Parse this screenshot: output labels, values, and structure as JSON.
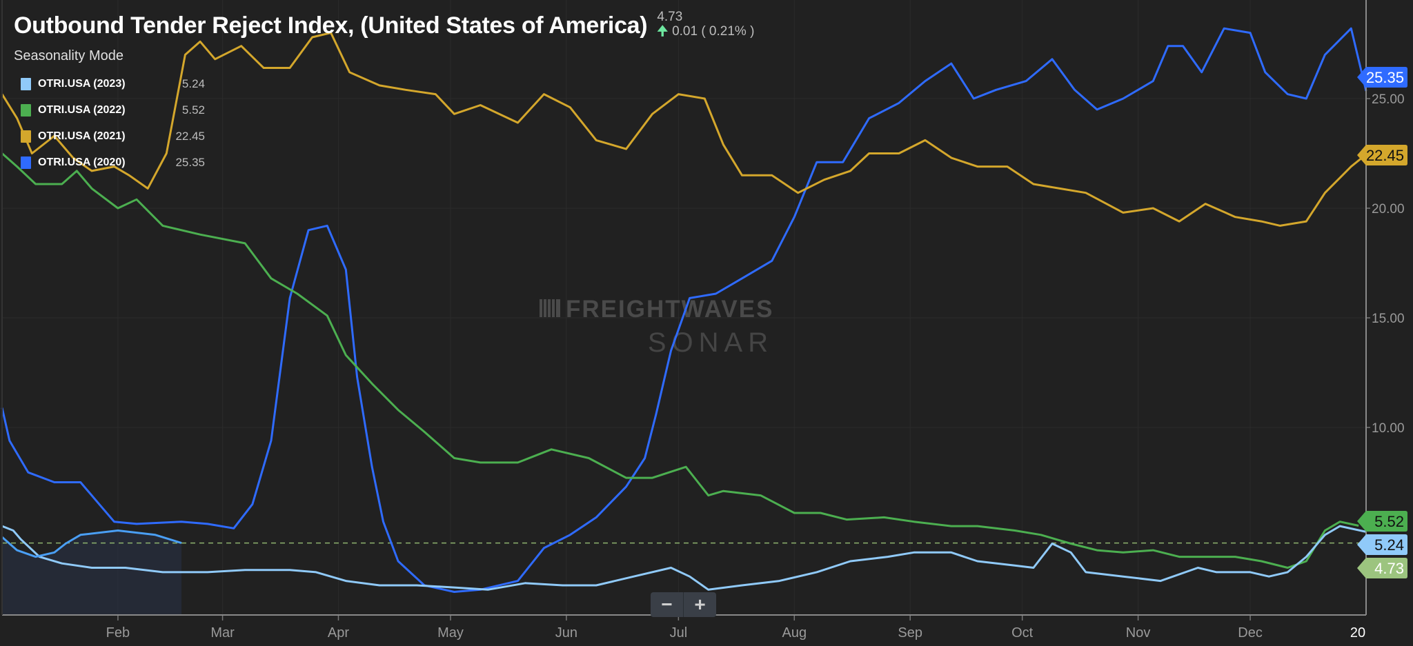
{
  "header": {
    "title": "Outbound Tender Reject Index, (United States of America)",
    "last_value": "4.73",
    "change": "0.01 ( 0.21% )",
    "change_direction": "up",
    "mode": "Seasonality Mode"
  },
  "legend": [
    {
      "name": "OTRI.USA (2023)",
      "value": "5.24",
      "color": "#90caf9"
    },
    {
      "name": "OTRI.USA (2022)",
      "value": "5.52",
      "color": "#4caf50"
    },
    {
      "name": "OTRI.USA (2021)",
      "value": "22.45",
      "color": "#d4a72c"
    },
    {
      "name": "OTRI.USA (2020)",
      "value": "25.35",
      "color": "#2f6bff"
    }
  ],
  "watermark": {
    "line1": "FREIGHTWAVES",
    "line2": "SONAR"
  },
  "zoom_controls": {
    "minus": "−",
    "plus": "+"
  },
  "chart_data": {
    "type": "line",
    "x_unit": "day of year",
    "xlim": [
      0,
      365
    ],
    "ylim": [
      1.45,
      29.5
    ],
    "grid": true,
    "y_ticks": [
      "10.00",
      "15.00",
      "20.00",
      "25.00"
    ],
    "y_tick_values": [
      10,
      15,
      20,
      25
    ],
    "x_ticks": [
      {
        "label": "Feb",
        "day": 31
      },
      {
        "label": "Mar",
        "day": 59
      },
      {
        "label": "Apr",
        "day": 90
      },
      {
        "label": "May",
        "day": 120
      },
      {
        "label": "Jun",
        "day": 151
      },
      {
        "label": "Jul",
        "day": 181
      },
      {
        "label": "Aug",
        "day": 212
      },
      {
        "label": "Sep",
        "day": 243
      },
      {
        "label": "Oct",
        "day": 273
      },
      {
        "label": "Nov",
        "day": 304
      },
      {
        "label": "Dec",
        "day": 334
      }
    ],
    "x_end_label": "20",
    "reference_line": {
      "value": 4.73,
      "color": "#8fb56f"
    },
    "series": [
      {
        "name": "OTRI.USA (2020)",
        "color": "#2f6bff",
        "end_label": "25.35",
        "points": [
          [
            0,
            10.9
          ],
          [
            2,
            9.4
          ],
          [
            7,
            7.95
          ],
          [
            14,
            7.5
          ],
          [
            21,
            7.5
          ],
          [
            26,
            6.5
          ],
          [
            30,
            5.7
          ],
          [
            36,
            5.6
          ],
          [
            48,
            5.7
          ],
          [
            55,
            5.6
          ],
          [
            62,
            5.4
          ],
          [
            67,
            6.5
          ],
          [
            72,
            9.4
          ],
          [
            77,
            15.9
          ],
          [
            82,
            19.0
          ],
          [
            87,
            19.2
          ],
          [
            92,
            17.2
          ],
          [
            95,
            12.3
          ],
          [
            99,
            8.2
          ],
          [
            102,
            5.7
          ],
          [
            106,
            3.9
          ],
          [
            113,
            2.8
          ],
          [
            121,
            2.5
          ],
          [
            128,
            2.6
          ],
          [
            138,
            3.0
          ],
          [
            145,
            4.5
          ],
          [
            152,
            5.1
          ],
          [
            159,
            5.9
          ],
          [
            167,
            7.3
          ],
          [
            172,
            8.6
          ],
          [
            175,
            10.6
          ],
          [
            179,
            13.5
          ],
          [
            184,
            15.9
          ],
          [
            191,
            16.1
          ],
          [
            198,
            16.8
          ],
          [
            206,
            17.6
          ],
          [
            212,
            19.6
          ],
          [
            218,
            22.1
          ],
          [
            225,
            22.1
          ],
          [
            232,
            24.1
          ],
          [
            240,
            24.8
          ],
          [
            247,
            25.8
          ],
          [
            254,
            26.6
          ],
          [
            260,
            25.0
          ],
          [
            266,
            25.4
          ],
          [
            274,
            25.8
          ],
          [
            281,
            26.8
          ],
          [
            287,
            25.4
          ],
          [
            293,
            24.5
          ],
          [
            300,
            25.0
          ],
          [
            308,
            25.8
          ],
          [
            312,
            27.4
          ],
          [
            316,
            27.4
          ],
          [
            321,
            26.2
          ],
          [
            327,
            28.2
          ],
          [
            334,
            28.0
          ],
          [
            338,
            26.2
          ],
          [
            344,
            25.2
          ],
          [
            349,
            25.0
          ],
          [
            354,
            27.0
          ],
          [
            361,
            28.2
          ],
          [
            365,
            25.35
          ]
        ]
      },
      {
        "name": "OTRI.USA (2021)",
        "color": "#d4a72c",
        "end_label": "22.45",
        "points": [
          [
            0,
            25.2
          ],
          [
            4,
            24.1
          ],
          [
            8,
            22.5
          ],
          [
            14,
            23.3
          ],
          [
            19,
            22.3
          ],
          [
            24,
            21.7
          ],
          [
            30,
            21.9
          ],
          [
            34,
            21.5
          ],
          [
            39,
            20.9
          ],
          [
            44,
            22.5
          ],
          [
            49,
            27.0
          ],
          [
            53,
            27.6
          ],
          [
            57,
            26.8
          ],
          [
            64,
            27.4
          ],
          [
            70,
            26.4
          ],
          [
            77,
            26.4
          ],
          [
            83,
            27.8
          ],
          [
            88,
            28.0
          ],
          [
            93,
            26.2
          ],
          [
            101,
            25.6
          ],
          [
            108,
            25.4
          ],
          [
            116,
            25.2
          ],
          [
            121,
            24.3
          ],
          [
            128,
            24.7
          ],
          [
            138,
            23.9
          ],
          [
            145,
            25.2
          ],
          [
            152,
            24.6
          ],
          [
            159,
            23.1
          ],
          [
            167,
            22.7
          ],
          [
            174,
            24.3
          ],
          [
            181,
            25.2
          ],
          [
            188,
            25.0
          ],
          [
            193,
            22.9
          ],
          [
            198,
            21.5
          ],
          [
            206,
            21.5
          ],
          [
            213,
            20.7
          ],
          [
            220,
            21.3
          ],
          [
            227,
            21.7
          ],
          [
            232,
            22.5
          ],
          [
            240,
            22.5
          ],
          [
            247,
            23.1
          ],
          [
            254,
            22.3
          ],
          [
            261,
            21.9
          ],
          [
            269,
            21.9
          ],
          [
            276,
            21.1
          ],
          [
            283,
            20.9
          ],
          [
            290,
            20.7
          ],
          [
            300,
            19.8
          ],
          [
            308,
            20.0
          ],
          [
            315,
            19.4
          ],
          [
            322,
            20.2
          ],
          [
            330,
            19.6
          ],
          [
            337,
            19.4
          ],
          [
            342,
            19.2
          ],
          [
            349,
            19.4
          ],
          [
            354,
            20.7
          ],
          [
            361,
            21.9
          ],
          [
            365,
            22.45
          ]
        ]
      },
      {
        "name": "OTRI.USA (2022)",
        "color": "#4caf50",
        "end_label": "5.52",
        "points": [
          [
            0,
            22.5
          ],
          [
            4,
            21.9
          ],
          [
            9,
            21.1
          ],
          [
            16,
            21.1
          ],
          [
            20,
            21.7
          ],
          [
            24,
            20.9
          ],
          [
            31,
            20.0
          ],
          [
            36,
            20.4
          ],
          [
            43,
            19.2
          ],
          [
            53,
            18.8
          ],
          [
            65,
            18.4
          ],
          [
            72,
            16.8
          ],
          [
            79,
            16.1
          ],
          [
            87,
            15.1
          ],
          [
            92,
            13.3
          ],
          [
            99,
            12.0
          ],
          [
            106,
            10.8
          ],
          [
            113,
            9.8
          ],
          [
            121,
            8.6
          ],
          [
            128,
            8.4
          ],
          [
            138,
            8.4
          ],
          [
            147,
            9.0
          ],
          [
            157,
            8.6
          ],
          [
            167,
            7.7
          ],
          [
            174,
            7.7
          ],
          [
            183,
            8.2
          ],
          [
            189,
            6.9
          ],
          [
            193,
            7.1
          ],
          [
            203,
            6.9
          ],
          [
            212,
            6.1
          ],
          [
            219,
            6.1
          ],
          [
            226,
            5.8
          ],
          [
            236,
            5.9
          ],
          [
            244,
            5.7
          ],
          [
            254,
            5.5
          ],
          [
            261,
            5.5
          ],
          [
            271,
            5.3
          ],
          [
            278,
            5.1
          ],
          [
            286,
            4.7
          ],
          [
            293,
            4.4
          ],
          [
            300,
            4.3
          ],
          [
            308,
            4.4
          ],
          [
            315,
            4.1
          ],
          [
            322,
            4.1
          ],
          [
            330,
            4.1
          ],
          [
            337,
            3.9
          ],
          [
            344,
            3.6
          ],
          [
            349,
            3.9
          ],
          [
            354,
            5.3
          ],
          [
            358,
            5.7
          ],
          [
            363,
            5.52
          ]
        ]
      },
      {
        "name": "OTRI.USA (2023)",
        "color": "#90caf9",
        "end_label": "5.24",
        "points": [
          [
            0,
            5.5
          ],
          [
            3,
            5.3
          ],
          [
            5,
            4.9
          ],
          [
            10,
            4.1
          ],
          [
            16,
            3.8
          ],
          [
            24,
            3.6
          ],
          [
            33,
            3.6
          ],
          [
            43,
            3.4
          ],
          [
            55,
            3.4
          ],
          [
            65,
            3.5
          ],
          [
            77,
            3.5
          ],
          [
            84,
            3.4
          ],
          [
            92,
            3.0
          ],
          [
            101,
            2.8
          ],
          [
            111,
            2.8
          ],
          [
            121,
            2.7
          ],
          [
            130,
            2.6
          ],
          [
            140,
            2.9
          ],
          [
            150,
            2.8
          ],
          [
            159,
            2.8
          ],
          [
            169,
            3.2
          ],
          [
            179,
            3.6
          ],
          [
            184,
            3.2
          ],
          [
            189,
            2.6
          ],
          [
            198,
            2.8
          ],
          [
            208,
            3.0
          ],
          [
            218,
            3.4
          ],
          [
            227,
            3.9
          ],
          [
            237,
            4.1
          ],
          [
            244,
            4.3
          ],
          [
            254,
            4.3
          ],
          [
            261,
            3.9
          ],
          [
            271,
            3.7
          ],
          [
            276,
            3.6
          ],
          [
            281,
            4.7
          ],
          [
            286,
            4.3
          ],
          [
            290,
            3.4
          ],
          [
            300,
            3.2
          ],
          [
            310,
            3.0
          ],
          [
            320,
            3.6
          ],
          [
            325,
            3.4
          ],
          [
            334,
            3.4
          ],
          [
            339,
            3.2
          ],
          [
            344,
            3.4
          ],
          [
            349,
            4.1
          ],
          [
            354,
            5.1
          ],
          [
            358,
            5.5
          ],
          [
            365,
            5.24
          ]
        ]
      },
      {
        "color": "#4a9ff5",
        "end_label": "4.73",
        "end_label_color": "#9cc47f",
        "shaded": true,
        "points": [
          [
            0,
            5.0
          ],
          [
            4,
            4.4
          ],
          [
            9,
            4.1
          ],
          [
            14,
            4.3
          ],
          [
            17,
            4.7
          ],
          [
            21,
            5.1
          ],
          [
            31,
            5.3
          ],
          [
            41,
            5.1
          ],
          [
            48,
            4.73
          ]
        ]
      }
    ]
  }
}
